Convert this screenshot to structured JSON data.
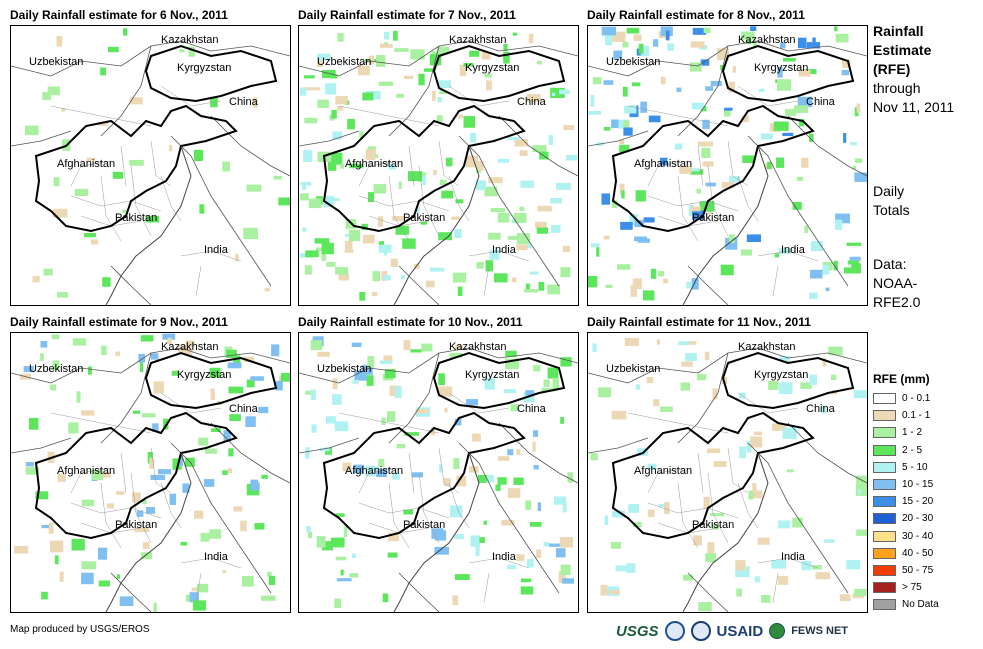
{
  "panels": [
    {
      "title": "Daily Rainfall estimate for 6 Nov., 2011"
    },
    {
      "title": "Daily Rainfall estimate for 7 Nov., 2011"
    },
    {
      "title": "Daily Rainfall estimate for 8 Nov., 2011"
    },
    {
      "title": "Daily Rainfall estimate for 9 Nov., 2011"
    },
    {
      "title": "Daily Rainfall estimate for 10 Nov., 2011"
    },
    {
      "title": "Daily Rainfall estimate for 11 Nov., 2011"
    }
  ],
  "map_labels": {
    "kazakhstan": "Kazakhstan",
    "uzbekistan": "Uzbekistan",
    "kyrgyzstan": "Kyrgyzstan",
    "china": "China",
    "afghanistan": "Afghanistan",
    "pakistan": "Pakistan",
    "india": "India"
  },
  "side_panel": {
    "line1": "Rainfall",
    "line2": "Estimate",
    "line3": "(RFE)",
    "line4": "through",
    "line5": "Nov 11, 2011",
    "daily1": "Daily",
    "daily2": "Totals",
    "data1": "Data:",
    "data2": "NOAA-",
    "data3": "RFE2.0"
  },
  "legend": {
    "title": "RFE (mm)",
    "items": [
      {
        "label": "0 - 0.1",
        "color": "#ffffff"
      },
      {
        "label": "0.1 - 1",
        "color": "#ecd8b4"
      },
      {
        "label": "1 - 2",
        "color": "#a9f0a0"
      },
      {
        "label": "2 - 5",
        "color": "#5ce65c"
      },
      {
        "label": "5 - 10",
        "color": "#b0f2f2"
      },
      {
        "label": "10 - 15",
        "color": "#7fbff2"
      },
      {
        "label": "15 - 20",
        "color": "#3c8fe8"
      },
      {
        "label": "20 - 30",
        "color": "#1e5fd6"
      },
      {
        "label": "30 - 40",
        "color": "#fde08a"
      },
      {
        "label": "40 - 50",
        "color": "#fca21c"
      },
      {
        "label": "50 - 75",
        "color": "#f23c00"
      },
      {
        "label": "> 75",
        "color": "#a8201e"
      },
      {
        "label": "No Data",
        "color": "#a0a0a0"
      }
    ]
  },
  "credit": "Map produced by USGS/EROS",
  "logos": {
    "usgs": "USGS",
    "usaid": "USAID",
    "fews": "FEWS NET"
  }
}
